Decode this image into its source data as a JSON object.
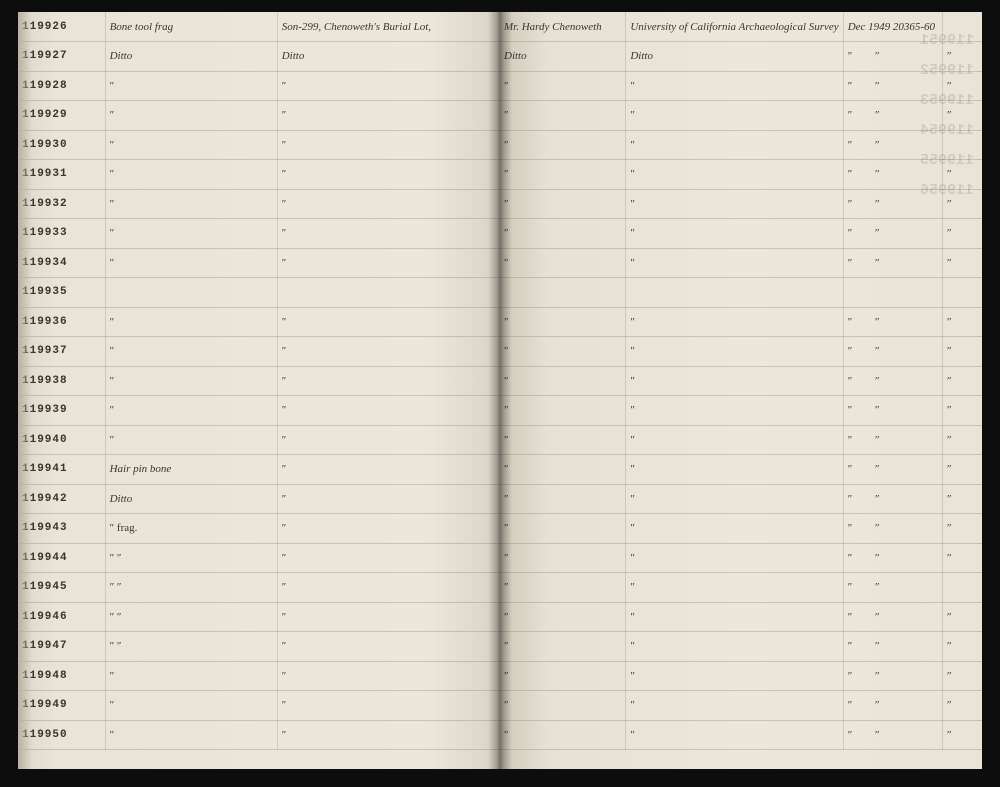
{
  "ids": [
    "119926",
    "119927",
    "119928",
    "119929",
    "119930",
    "119931",
    "119932",
    "119933",
    "119934",
    "119935",
    "119936",
    "119937",
    "119938",
    "119939",
    "119940",
    "119941",
    "119942",
    "119943",
    "119944",
    "119945",
    "119946",
    "119947",
    "119948",
    "119949",
    "119950"
  ],
  "left": {
    "col_desc": [
      "Bone tool frag",
      "Ditto",
      "″",
      "″",
      "″",
      "″",
      "″",
      "″",
      "″",
      "",
      "″",
      "″",
      "″",
      "″",
      "″",
      "Hair pin bone",
      "Ditto",
      "″  frag.",
      "″   ″",
      "″   ″",
      "″   ″",
      "″   ″",
      "″",
      "″",
      "″"
    ],
    "col_loc": [
      "Son-299, Chenoweth's Burial Lot,",
      "Ditto",
      "″",
      "″",
      "″",
      "″",
      "″",
      "″",
      "″",
      "",
      "″",
      "″",
      "″",
      "″",
      "″",
      "″",
      "″",
      "″",
      "″",
      "″",
      "″",
      "″",
      "″",
      "″",
      "″"
    ]
  },
  "right": {
    "col1": [
      "Mr. Hardy Chenoweth",
      "Ditto",
      "″",
      "″",
      "″",
      "″",
      "″",
      "″",
      "″",
      "",
      "″",
      "″",
      "″",
      "″",
      "″",
      "″",
      "″",
      "″",
      "″",
      "″",
      "″",
      "″",
      "″",
      "″",
      "″"
    ],
    "col2": [
      "University of California Archaeological Survey",
      "Ditto",
      "″",
      "″",
      "″",
      "″",
      "″",
      "″",
      "″",
      "",
      "″",
      "″",
      "″",
      "″",
      "″",
      "″",
      "″",
      "″",
      "″",
      "″",
      "″",
      "″",
      "″",
      "″",
      "″"
    ],
    "col3": [
      "Dec 1949 20365-60",
      "″  ″",
      "″  ″",
      "″  ″",
      "″  ″",
      "″  ″",
      "″  ″",
      "″  ″",
      "″  ″",
      "",
      "″  ″",
      "″  ″",
      "″  ″",
      "″  ″",
      "″  ″",
      "″  ″",
      "″  ″",
      "″  ″",
      "″  ″",
      "″  ″",
      "″  ″",
      "″  ″",
      "″  ″",
      "″  ″",
      "″  ″"
    ],
    "col4": [
      "",
      "″",
      "″",
      "″",
      "",
      "″",
      "″",
      "″",
      "″",
      "",
      "″",
      "″",
      "″",
      "″",
      "″",
      "″",
      "″",
      "″",
      "″",
      "",
      "″",
      "″",
      "″",
      "″",
      "″"
    ]
  },
  "shadow_ids": [
    "119951",
    "119952",
    "119953",
    "119954",
    "119955",
    "119956"
  ]
}
